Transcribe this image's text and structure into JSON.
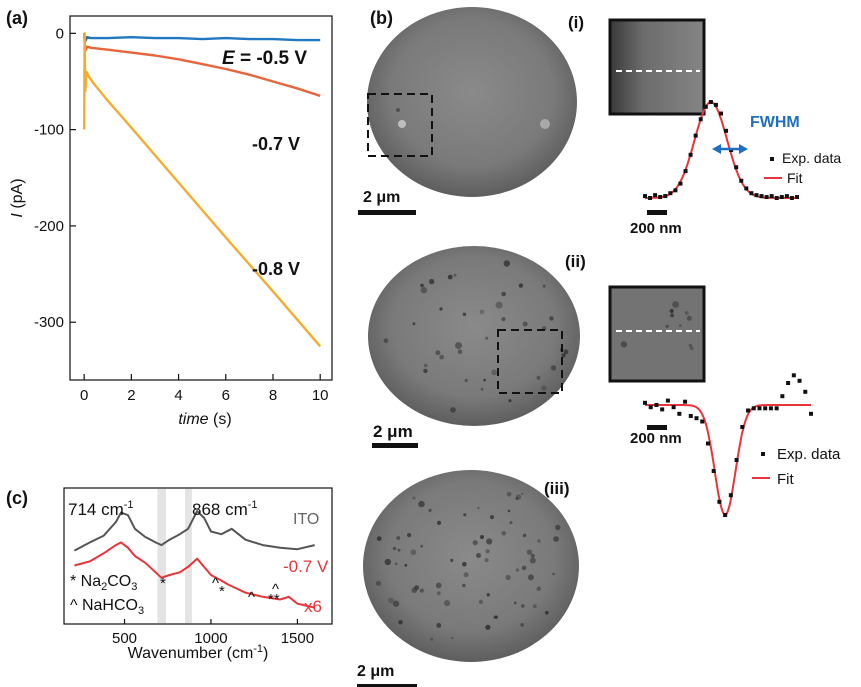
{
  "panel_labels": {
    "a": "(a)",
    "b": "(b)",
    "c": "(c)"
  },
  "sub_labels": {
    "i": "(i)",
    "ii": "(ii)",
    "iii": "(iii)"
  },
  "scalebars": {
    "um": "2 μm",
    "nm": "200 nm"
  },
  "legend": {
    "exp": "Exp. data",
    "fit": "Fit",
    "fwhm": "FWHM"
  },
  "colors": {
    "blue": "#1f78c1",
    "orange": "#e8643a",
    "gold": "#f2ad2e",
    "red": "#e8353a",
    "gray": "#555555",
    "fwhm": "#1f6fc0"
  },
  "chart_data": [
    {
      "type": "line",
      "panel": "a",
      "xlabel": "time (s)",
      "ylabel": "I (pA)",
      "xlim": [
        -0.6,
        10.5
      ],
      "ylim": [
        -360,
        18
      ],
      "xticks": [
        0,
        2,
        4,
        6,
        8,
        10
      ],
      "yticks": [
        0,
        -100,
        -200,
        -300
      ],
      "series": [
        {
          "name": "E = -0.5 V",
          "name_prefix": "E",
          "name_rest": " = -0.5 V",
          "color": "#1f78c1",
          "x": [
            0,
            0.05,
            0.12,
            0.3,
            1,
            2,
            3,
            4,
            5,
            6,
            7,
            8,
            9,
            10
          ],
          "y": [
            0,
            -8,
            -4,
            -5,
            -5,
            -4,
            -5,
            -5,
            -6,
            -5,
            -6,
            -6,
            -7,
            -7
          ]
        },
        {
          "name": "-0.7 V",
          "color": "#e8643a",
          "x": [
            0,
            0.05,
            0.12,
            0.3,
            1,
            2,
            3,
            4,
            5,
            6,
            7,
            8,
            9,
            10
          ],
          "y": [
            -2,
            -18,
            -14,
            -15,
            -17,
            -20,
            -23,
            -27,
            -32,
            -37,
            -43,
            -50,
            -57,
            -65
          ]
        },
        {
          "name": "-0.8 V",
          "color": "#f2ad2e",
          "x": [
            0,
            0.02,
            0.05,
            0.1,
            0.2,
            0.4,
            1,
            2,
            4,
            6,
            8,
            10
          ],
          "y": [
            -100,
            0,
            -60,
            -40,
            -45,
            -52,
            -70,
            -98,
            -155,
            -212,
            -268,
            -325
          ]
        }
      ]
    },
    {
      "type": "line",
      "panel": "c",
      "xlabel": "Wavenumber (cm⁻¹)",
      "xlim": [
        150,
        1700
      ],
      "ylim": [
        0,
        10
      ],
      "xticks": [
        500,
        1000,
        1500
      ],
      "annotations": [
        "714 cm⁻¹",
        "868 cm⁻¹",
        "* Na₂CO₃",
        "^ NaHCO₃",
        "*",
        "^",
        "^",
        "^",
        "**"
      ],
      "series": [
        {
          "name": "ITO",
          "color": "#555555",
          "x": [
            210,
            300,
            380,
            450,
            480,
            520,
            560,
            620,
            680,
            714,
            760,
            820,
            868,
            920,
            960,
            1000,
            1060,
            1120,
            1200,
            1300,
            1400,
            1500,
            1600
          ],
          "y": [
            5.4,
            6.0,
            6.5,
            7.5,
            8.2,
            8.0,
            7.0,
            6.4,
            6.0,
            5.8,
            6.2,
            6.6,
            7.0,
            8.3,
            7.8,
            6.8,
            6.6,
            7.0,
            6.2,
            5.8,
            5.6,
            5.5,
            5.8
          ]
        },
        {
          "name": "-0.7 V",
          "scale": "x6",
          "color": "#e8353a",
          "x": [
            210,
            300,
            380,
            450,
            480,
            520,
            560,
            620,
            680,
            714,
            760,
            820,
            868,
            920,
            960,
            1000,
            1060,
            1100,
            1150,
            1200,
            1300,
            1400,
            1450,
            1500,
            1600
          ],
          "y": [
            4.3,
            4.6,
            5.2,
            5.8,
            6.0,
            5.6,
            5.0,
            4.5,
            3.8,
            3.4,
            3.6,
            3.8,
            4.2,
            4.8,
            4.2,
            3.6,
            3.2,
            2.9,
            2.6,
            2.3,
            2.0,
            1.8,
            2.0,
            1.5,
            1.2
          ]
        }
      ]
    },
    {
      "type": "scatter",
      "panel": "b-i",
      "series": [
        {
          "name": "Exp. data",
          "x": [
            0,
            1,
            2,
            3,
            4,
            5,
            6,
            7,
            8,
            9,
            10,
            11,
            12,
            13,
            14,
            15,
            16,
            17,
            18,
            19,
            20,
            21,
            22,
            23,
            24,
            25,
            26,
            27,
            28,
            29,
            30
          ],
          "y": [
            0.02,
            0.0,
            0.03,
            0.01,
            0.02,
            0.05,
            0.08,
            0.15,
            0.28,
            0.45,
            0.65,
            0.82,
            0.95,
            1.0,
            0.97,
            0.88,
            0.7,
            0.5,
            0.32,
            0.18,
            0.1,
            0.05,
            0.03,
            0.02,
            0.01,
            0.02,
            0.0,
            0.01,
            0.02,
            0.0,
            0.01
          ]
        },
        {
          "name": "Fit",
          "type": "gaussian",
          "amplitude": 1.0,
          "center": 13,
          "sigma": 3.2
        }
      ]
    },
    {
      "type": "scatter",
      "panel": "b-ii",
      "series": [
        {
          "name": "Exp. data",
          "x": [
            0,
            1,
            2,
            3,
            4,
            5,
            6,
            7,
            8,
            9,
            10,
            11,
            12,
            13,
            14,
            15,
            16,
            17,
            18,
            19,
            20,
            21,
            22,
            23,
            24,
            25,
            26,
            27,
            28,
            29
          ],
          "y": [
            0.02,
            -0.02,
            0.0,
            -0.04,
            0.04,
            -0.02,
            -0.08,
            0.03,
            -0.1,
            -0.12,
            -0.15,
            -0.35,
            -0.6,
            -0.88,
            -1.0,
            -0.82,
            -0.5,
            -0.2,
            -0.05,
            -0.03,
            -0.03,
            -0.03,
            -0.03,
            -0.03,
            0.08,
            0.2,
            0.27,
            0.22,
            0.12,
            -0.08
          ]
        },
        {
          "name": "Fit",
          "type": "gaussian",
          "amplitude": -1.0,
          "center": 14,
          "sigma": 1.8
        }
      ]
    }
  ]
}
